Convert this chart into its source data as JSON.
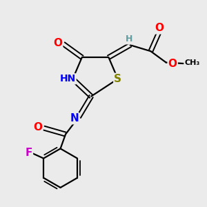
{
  "bg_color": "#ebebeb",
  "atom_colors": {
    "C": "#000000",
    "H": "#5f9ea0",
    "N": "#0000ff",
    "O": "#ff0000",
    "S": "#808000",
    "F": "#cc00cc"
  },
  "bond_color": "#000000",
  "figsize": [
    3.0,
    3.0
  ],
  "dpi": 100
}
